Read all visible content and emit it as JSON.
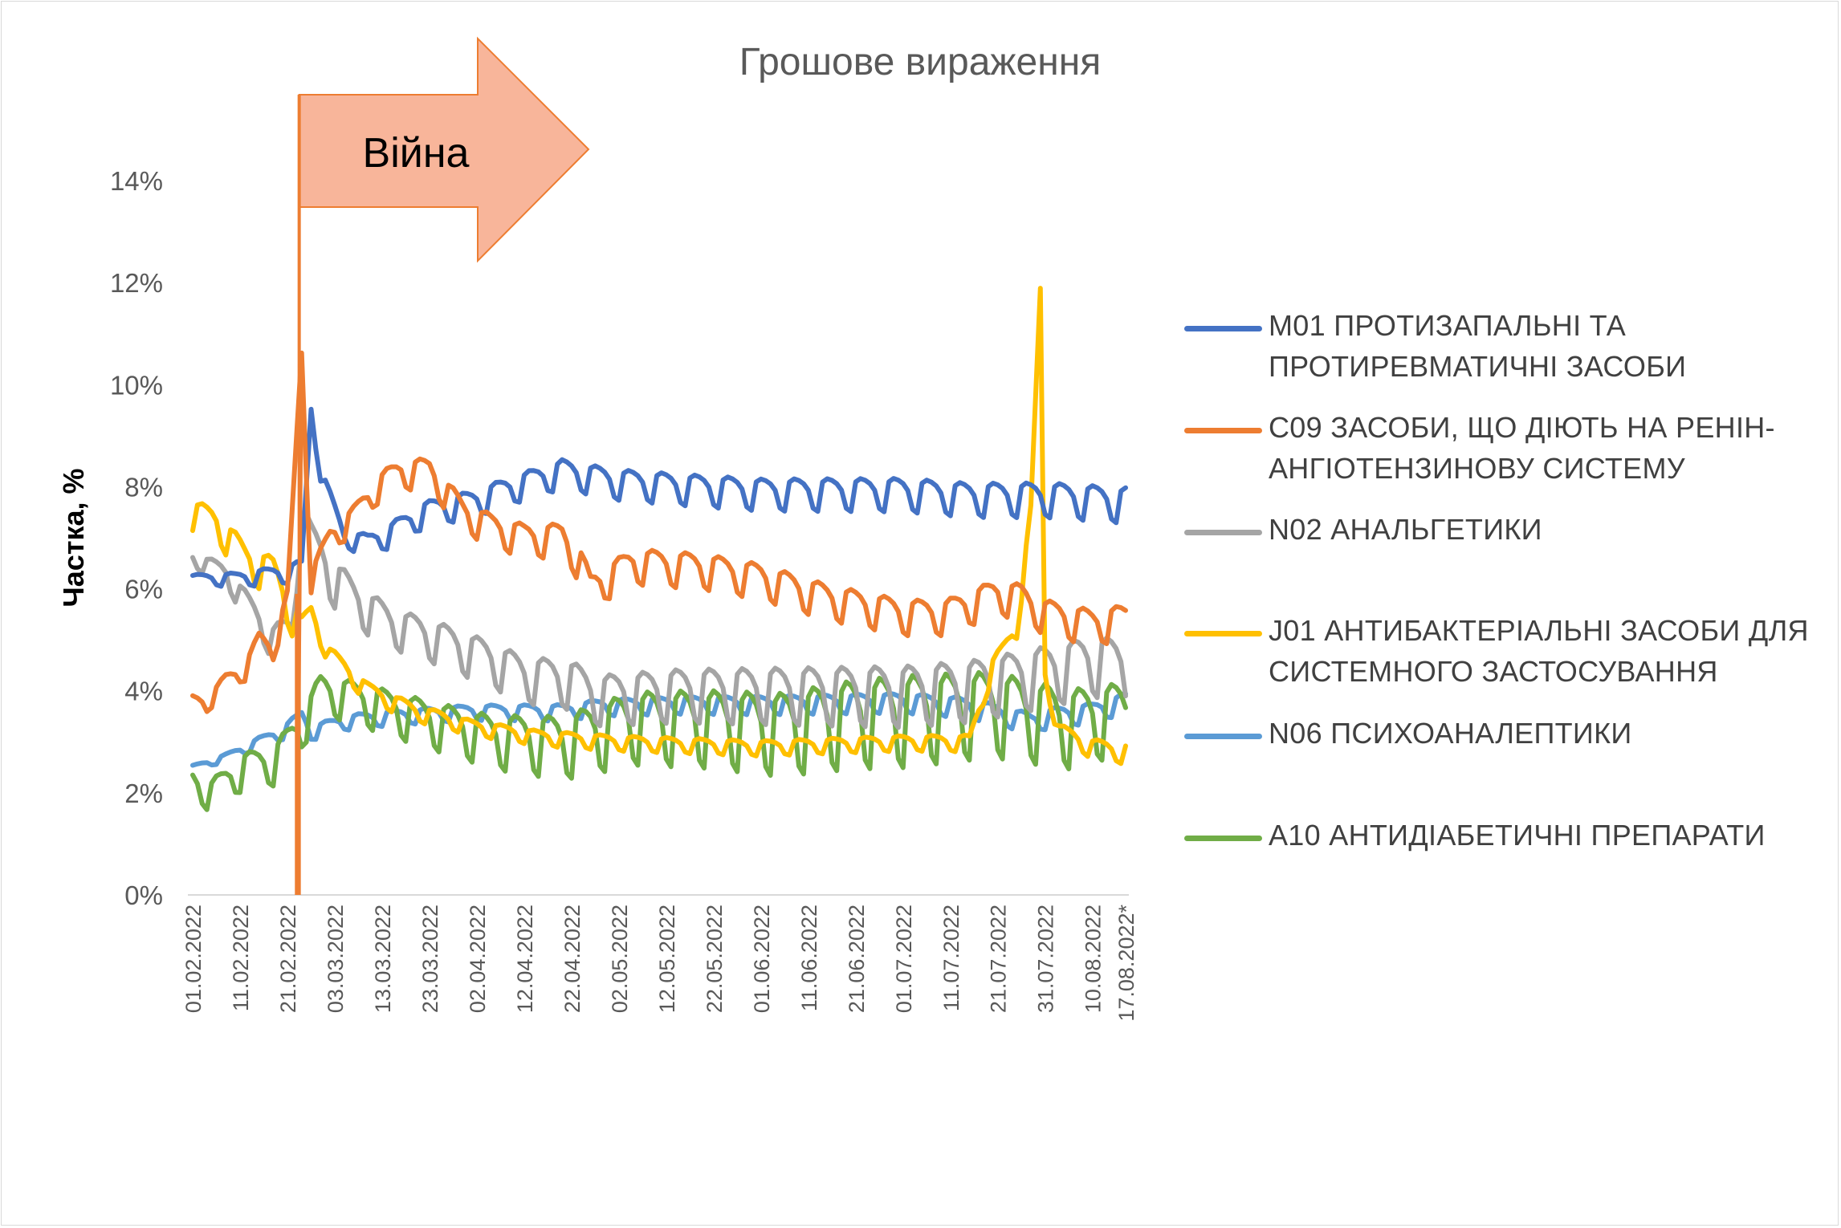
{
  "chart_data": {
    "type": "line",
    "title": "Грошове вираження",
    "ylabel": "Частка, %",
    "xlabel": "",
    "ylim": [
      0,
      14
    ],
    "yticks": [
      "0%",
      "2%",
      "4%",
      "6%",
      "8%",
      "10%",
      "12%",
      "14%"
    ],
    "xticks": [
      "01.02.2022",
      "11.02.2022",
      "21.02.2022",
      "03.03.2022",
      "13.03.2022",
      "23.03.2022",
      "02.04.2022",
      "12.04.2022",
      "22.04.2022",
      "02.05.2022",
      "12.05.2022",
      "22.05.2022",
      "01.06.2022",
      "11.06.2022",
      "21.06.2022",
      "01.07.2022",
      "11.07.2022",
      "21.07.2022",
      "31.07.2022",
      "10.08.2022",
      "17.08.2022*"
    ],
    "x_range": [
      "01.02.2022",
      "17.08.2022"
    ],
    "grid": false,
    "legend": "right",
    "annotation": {
      "text": "Війна",
      "date": "24.02.2022",
      "fill": "#f8b59a",
      "stroke": "#ed7d31"
    },
    "series": [
      {
        "name": "M01 ПРОТИЗАПАЛЬНІ ТА ПРОТИРЕВМАТИЧНІ ЗАСОБИ",
        "color": "#4472c4",
        "anchors": [
          [
            "01.02.2022",
            6.2
          ],
          [
            "10.02.2022",
            6.2
          ],
          [
            "20.02.2022",
            6.3
          ],
          [
            "24.02.2022",
            6.4
          ],
          [
            "26.02.2022",
            9.5
          ],
          [
            "28.02.2022",
            8.3
          ],
          [
            "05.03.2022",
            7.0
          ],
          [
            "10.03.2022",
            6.9
          ],
          [
            "15.03.2022",
            7.1
          ],
          [
            "22.03.2022",
            7.5
          ],
          [
            "01.04.2022",
            7.7
          ],
          [
            "10.04.2022",
            8.0
          ],
          [
            "20.04.2022",
            8.3
          ],
          [
            "01.05.2022",
            8.1
          ],
          [
            "15.05.2022",
            8.0
          ],
          [
            "01.06.2022",
            7.9
          ],
          [
            "15.06.2022",
            7.9
          ],
          [
            "01.07.2022",
            7.9
          ],
          [
            "15.07.2022",
            7.8
          ],
          [
            "01.08.2022",
            7.8
          ],
          [
            "17.08.2022",
            7.7
          ]
        ],
        "amp": [
          [
            "01.02.2022",
            0.1
          ],
          [
            "24.02.2022",
            0.2
          ],
          [
            "01.03.2022",
            0.15
          ],
          [
            "15.03.2022",
            0.25
          ],
          [
            "01.05.2022",
            0.3
          ],
          [
            "17.08.2022",
            0.35
          ]
        ]
      },
      {
        "name": "C09 ЗАСОБИ, ЩО ДІЮТЬ НА РЕНІН-АНГІОТЕНЗИНОВУ СИСТЕМУ",
        "color": "#ed7d31",
        "anchors": [
          [
            "01.02.2022",
            3.8
          ],
          [
            "04.02.2022",
            3.75
          ],
          [
            "08.02.2022",
            4.2
          ],
          [
            "12.02.2022",
            4.4
          ],
          [
            "15.02.2022",
            5.0
          ],
          [
            "18.02.2022",
            4.8
          ],
          [
            "21.02.2022",
            5.8
          ],
          [
            "24.02.2022",
            10.6
          ],
          [
            "26.02.2022",
            6.2
          ],
          [
            "02.03.2022",
            7.0
          ],
          [
            "07.03.2022",
            7.4
          ],
          [
            "12.03.2022",
            8.0
          ],
          [
            "17.03.2022",
            8.3
          ],
          [
            "23.03.2022",
            8.3
          ],
          [
            "30.03.2022",
            7.5
          ],
          [
            "05.04.2022",
            7.2
          ],
          [
            "12.04.2022",
            7.0
          ],
          [
            "20.04.2022",
            7.0
          ],
          [
            "24.04.2022",
            6.5
          ],
          [
            "26.04.2022",
            6.0
          ],
          [
            "05.05.2022",
            6.5
          ],
          [
            "20.05.2022",
            6.4
          ],
          [
            "01.06.2022",
            6.2
          ],
          [
            "15.06.2022",
            5.8
          ],
          [
            "01.07.2022",
            5.5
          ],
          [
            "10.07.2022",
            5.5
          ],
          [
            "21.07.2022",
            5.9
          ],
          [
            "26.07.2022",
            5.8
          ],
          [
            "31.07.2022",
            5.5
          ],
          [
            "10.08.2022",
            5.3
          ],
          [
            "17.08.2022",
            5.4
          ]
        ],
        "amp": [
          [
            "01.02.2022",
            0.15
          ],
          [
            "20.02.2022",
            0.2
          ],
          [
            "01.03.2022",
            0.25
          ],
          [
            "15.03.2022",
            0.3
          ],
          [
            "01.05.2022",
            0.35
          ],
          [
            "17.08.2022",
            0.35
          ]
        ]
      },
      {
        "name": "N02 АНАЛЬГЕТИКИ",
        "color": "#a5a5a5",
        "anchors": [
          [
            "01.02.2022",
            6.6
          ],
          [
            "08.02.2022",
            6.3
          ],
          [
            "14.02.2022",
            5.5
          ],
          [
            "18.02.2022",
            5.0
          ],
          [
            "22.02.2022",
            5.2
          ],
          [
            "24.02.2022",
            7.5
          ],
          [
            "26.02.2022",
            6.9
          ],
          [
            "02.03.2022",
            6.3
          ],
          [
            "07.03.2022",
            5.8
          ],
          [
            "15.03.2022",
            5.3
          ],
          [
            "25.03.2022",
            5.0
          ],
          [
            "05.04.2022",
            4.6
          ],
          [
            "12.04.2022",
            4.3
          ],
          [
            "22.04.2022",
            4.2
          ],
          [
            "27.04.2022",
            3.9
          ],
          [
            "15.05.2022",
            4.0
          ],
          [
            "01.06.2022",
            4.0
          ],
          [
            "15.06.2022",
            4.0
          ],
          [
            "01.07.2022",
            4.0
          ],
          [
            "15.07.2022",
            4.1
          ],
          [
            "01.08.2022",
            4.4
          ],
          [
            "10.08.2022",
            4.6
          ],
          [
            "17.08.2022",
            4.5
          ]
        ],
        "amp": [
          [
            "01.02.2022",
            0.15
          ],
          [
            "15.02.2022",
            0.3
          ],
          [
            "01.03.2022",
            0.5
          ],
          [
            "15.03.2022",
            0.4
          ],
          [
            "01.05.2022",
            0.5
          ],
          [
            "01.07.2022",
            0.6
          ],
          [
            "17.08.2022",
            0.6
          ]
        ]
      },
      {
        "name": "J01 АНТИБАКТЕРІАЛЬНІ ЗАСОБИ ДЛЯ СИСТЕМНОГО ЗАСТОСУВАННЯ",
        "color": "#ffc000",
        "anchors": [
          [
            "01.02.2022",
            7.5
          ],
          [
            "06.02.2022",
            7.3
          ],
          [
            "12.02.2022",
            6.6
          ],
          [
            "18.02.2022",
            6.3
          ],
          [
            "22.02.2022",
            5.5
          ],
          [
            "24.02.2022",
            5.2
          ],
          [
            "26.02.2022",
            5.5
          ],
          [
            "02.03.2022",
            4.7
          ],
          [
            "10.03.2022",
            4.0
          ],
          [
            "20.03.2022",
            3.6
          ],
          [
            "01.04.2022",
            3.3
          ],
          [
            "15.04.2022",
            3.1
          ],
          [
            "01.05.2022",
            3.0
          ],
          [
            "01.06.2022",
            2.9
          ],
          [
            "01.07.2022",
            3.0
          ],
          [
            "15.07.2022",
            3.0
          ],
          [
            "20.07.2022",
            4.5
          ],
          [
            "25.07.2022",
            5.2
          ],
          [
            "28.07.2022",
            7.5
          ],
          [
            "30.07.2022",
            11.8
          ],
          [
            "31.07.2022",
            4.3
          ],
          [
            "03.08.2022",
            3.2
          ],
          [
            "10.08.2022",
            2.9
          ],
          [
            "17.08.2022",
            2.8
          ]
        ],
        "amp": [
          [
            "01.02.2022",
            0.3
          ],
          [
            "20.02.2022",
            0.4
          ],
          [
            "01.03.2022",
            0.2
          ],
          [
            "01.04.2022",
            0.15
          ],
          [
            "01.07.2022",
            0.15
          ],
          [
            "17.08.2022",
            0.2
          ]
        ]
      },
      {
        "name": "N06 ПСИХОАНАЛЕПТИКИ",
        "color": "#5b9bd5",
        "anchors": [
          [
            "01.02.2022",
            2.5
          ],
          [
            "08.02.2022",
            2.7
          ],
          [
            "15.02.2022",
            3.0
          ],
          [
            "20.02.2022",
            3.2
          ],
          [
            "24.02.2022",
            3.5
          ],
          [
            "26.02.2022",
            3.2
          ],
          [
            "05.03.2022",
            3.4
          ],
          [
            "15.03.2022",
            3.5
          ],
          [
            "01.04.2022",
            3.6
          ],
          [
            "20.04.2022",
            3.6
          ],
          [
            "28.04.2022",
            3.7
          ],
          [
            "15.05.2022",
            3.75
          ],
          [
            "01.06.2022",
            3.75
          ],
          [
            "01.07.2022",
            3.8
          ],
          [
            "15.07.2022",
            3.7
          ],
          [
            "28.07.2022",
            3.4
          ],
          [
            "01.08.2022",
            3.5
          ],
          [
            "10.08.2022",
            3.6
          ],
          [
            "17.08.2022",
            3.8
          ]
        ],
        "amp": [
          [
            "01.02.2022",
            0.05
          ],
          [
            "24.02.2022",
            0.15
          ],
          [
            "01.04.2022",
            0.15
          ],
          [
            "01.07.2022",
            0.2
          ],
          [
            "17.08.2022",
            0.2
          ]
        ]
      },
      {
        "name": "A10 АНТИДІАБЕТИЧНІ ПРЕПАРАТИ",
        "color": "#70ad47",
        "anchors": [
          [
            "01.02.2022",
            2.2
          ],
          [
            "05.02.2022",
            2.0
          ],
          [
            "12.02.2022",
            2.5
          ],
          [
            "18.02.2022",
            2.6
          ],
          [
            "24.02.2022",
            3.3
          ],
          [
            "28.02.2022",
            4.0
          ],
          [
            "05.03.2022",
            3.9
          ],
          [
            "20.03.2022",
            3.5
          ],
          [
            "05.04.2022",
            3.1
          ],
          [
            "20.04.2022",
            3.0
          ],
          [
            "05.05.2022",
            3.4
          ],
          [
            "20.05.2022",
            3.4
          ],
          [
            "05.06.2022",
            3.3
          ],
          [
            "20.06.2022",
            3.5
          ],
          [
            "05.07.2022",
            3.6
          ],
          [
            "20.07.2022",
            3.7
          ],
          [
            "05.08.2022",
            3.4
          ],
          [
            "17.08.2022",
            3.6
          ]
        ],
        "amp": [
          [
            "01.02.2022",
            0.3
          ],
          [
            "20.02.2022",
            0.4
          ],
          [
            "01.03.2022",
            0.4
          ],
          [
            "01.04.2022",
            0.5
          ],
          [
            "01.05.2022",
            0.7
          ],
          [
            "01.07.2022",
            0.9
          ],
          [
            "01.08.2022",
            0.8
          ],
          [
            "17.08.2022",
            0.7
          ]
        ]
      }
    ]
  }
}
